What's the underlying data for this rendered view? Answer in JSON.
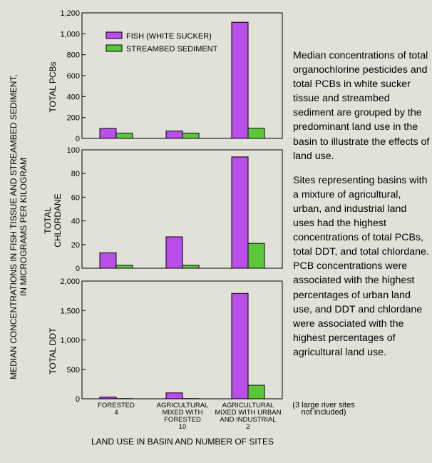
{
  "chart_data": {
    "type": "bar",
    "ylabel": "MEDIAN CONCENTRATIONS IN FISH TISSUE AND STREAMBED SEDIMENT, IN MICROGRAMS PER KILOGRAM",
    "xlabel": "LAND USE IN BASIN AND NUMBER OF SITES",
    "categories": [
      [
        "FORESTED",
        "4"
      ],
      [
        "AGRICULTURAL",
        "MIXED WITH",
        "FORESTED",
        "10"
      ],
      [
        "AGRICULTURAL",
        "MIXED WITH URBAN",
        "AND INDUSTRIAL",
        "2"
      ]
    ],
    "category_note": [
      "(3 large river sites",
      "not included)"
    ],
    "legend": [
      {
        "name": "FISH (WHITE SUCKER)",
        "color": "#b94ee8"
      },
      {
        "name": "STREAMBED SEDIMENT",
        "color": "#5ac83a"
      }
    ],
    "panels": [
      {
        "label": [
          "TOTAL PCBs"
        ],
        "ylim": [
          0,
          1200
        ],
        "ticks": [
          0,
          200,
          400,
          600,
          800,
          1000,
          1200
        ],
        "tick_labels": [
          "0",
          "200",
          "400",
          "600",
          "800",
          "1,000",
          "1,200"
        ],
        "series": [
          {
            "name": "FISH (WHITE SUCKER)",
            "values": [
              95,
              70,
              1110
            ]
          },
          {
            "name": "STREAMBED SEDIMENT",
            "values": [
              50,
              50,
              97
            ]
          }
        ]
      },
      {
        "label": [
          "TOTAL",
          "CHLORDANE"
        ],
        "ylim": [
          0,
          100
        ],
        "ticks": [
          0,
          20,
          40,
          60,
          80,
          100
        ],
        "tick_labels": [
          "0",
          "20",
          "40",
          "60",
          "80",
          "100"
        ],
        "series": [
          {
            "name": "FISH (WHITE SUCKER)",
            "values": [
              13,
              26.5,
              94
            ]
          },
          {
            "name": "STREAMBED SEDIMENT",
            "values": [
              2.5,
              2.5,
              21
            ]
          }
        ]
      },
      {
        "label": [
          "TOTAL DDT"
        ],
        "ylim": [
          0,
          2000
        ],
        "ticks": [
          0,
          500,
          1000,
          1500,
          2000
        ],
        "tick_labels": [
          "0",
          "500",
          "1,000",
          "1,500",
          "2,000"
        ],
        "series": [
          {
            "name": "FISH (WHITE SUCKER)",
            "values": [
              30,
              100,
              1790
            ]
          },
          {
            "name": "STREAMBED SEDIMENT",
            "values": [
              3,
              3,
              230
            ]
          }
        ]
      }
    ]
  },
  "description": {
    "paragraphs": [
      "Median concentrations of total organochlorine pesticides and total PCBs in white sucker tissue and streambed sediment are grouped by the predominant land use in the basin to illustrate the effects of land use.",
      "Sites representing basins with a mixture of agricultural, urban, and industrial land uses had the highest concentrations of total PCBs, total DDT, and total chlordane. PCB concentrations were associated with the highest percentages of urban land use, and DDT and chlordane were associated with the highest percentages of agricultural land use."
    ]
  }
}
